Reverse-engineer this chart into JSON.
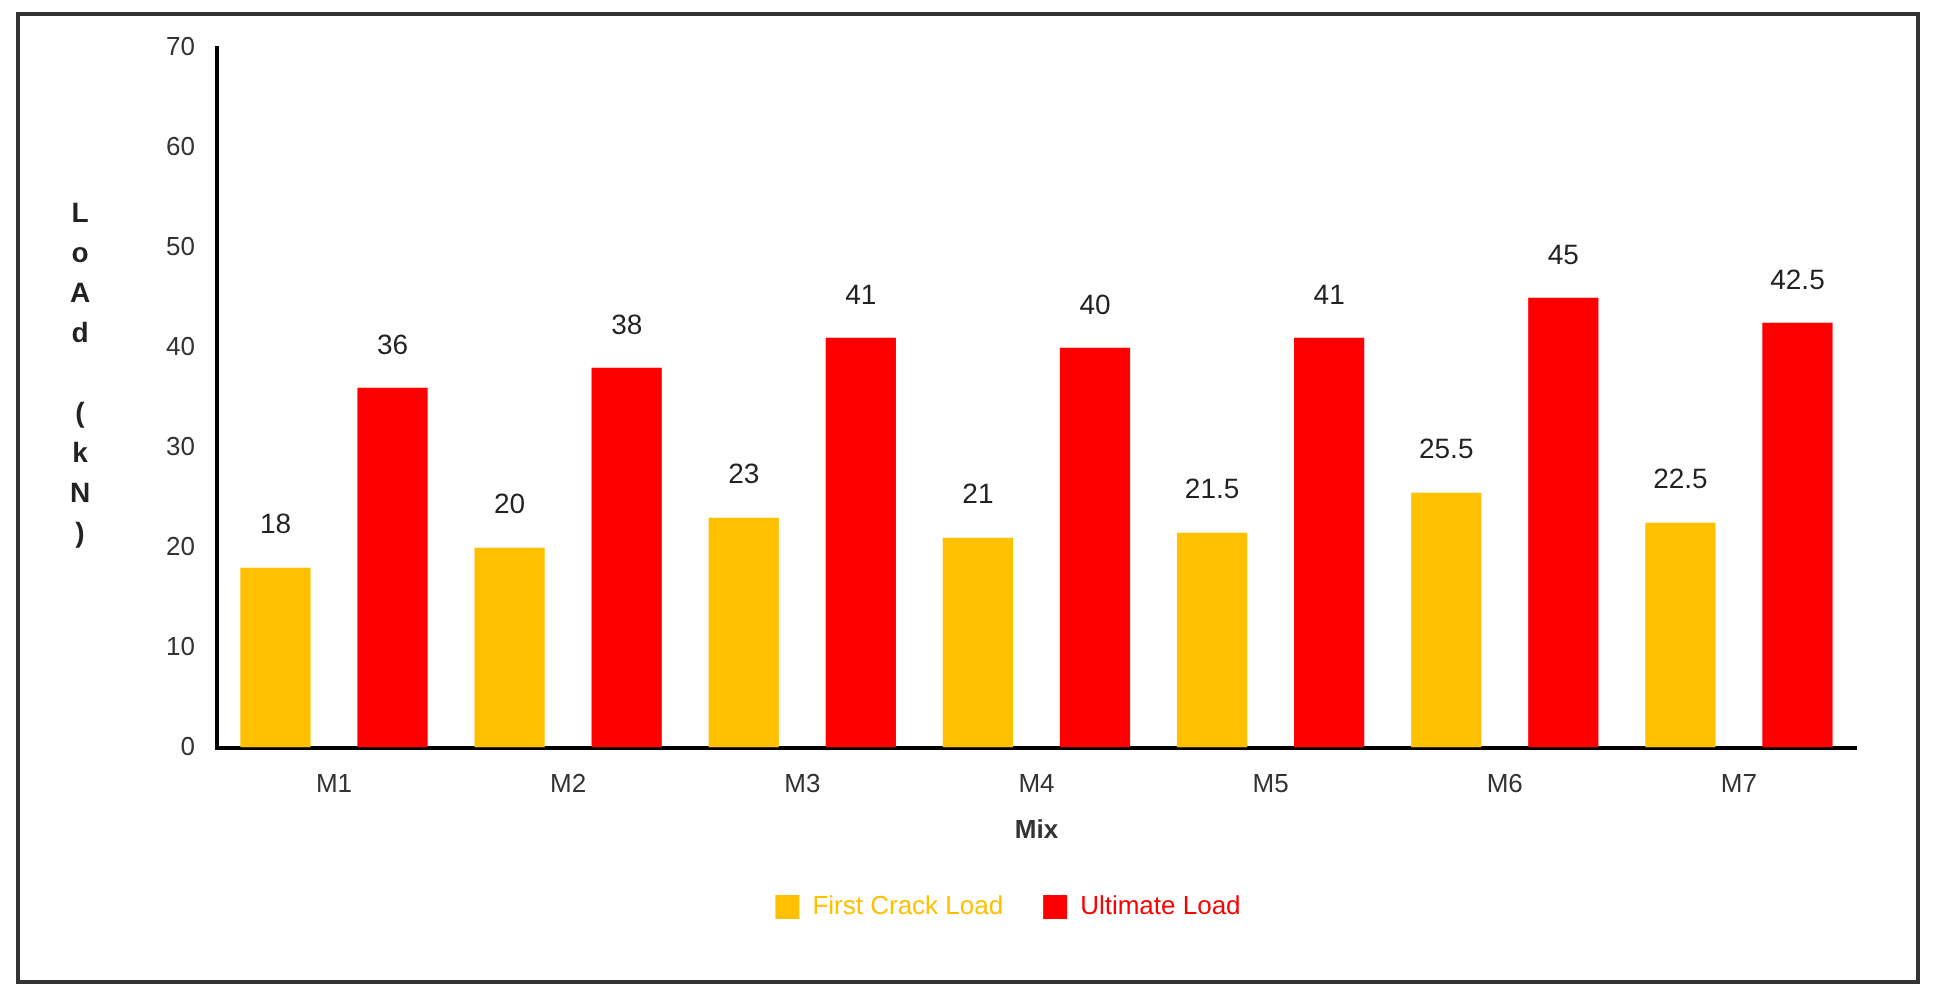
{
  "chart_data": {
    "type": "bar",
    "xlabel": "Mix",
    "ylabel": "LoAd (kN)",
    "categories": [
      "M1",
      "M2",
      "M3",
      "M4",
      "M5",
      "M6",
      "M7"
    ],
    "series": [
      {
        "name": "First Crack Load",
        "color": "#ffc000",
        "values": [
          18,
          20,
          23,
          21,
          21.5,
          25.5,
          22.5
        ]
      },
      {
        "name": "Ultimate Load",
        "color": "#ff0000",
        "values": [
          36,
          38,
          41,
          40,
          41,
          45,
          42.5
        ]
      }
    ],
    "ylim": [
      0,
      70
    ],
    "yticks": [
      0,
      10,
      20,
      30,
      40,
      50,
      60,
      70
    ],
    "grid": false,
    "legend": "bottom",
    "data_labels": true
  }
}
